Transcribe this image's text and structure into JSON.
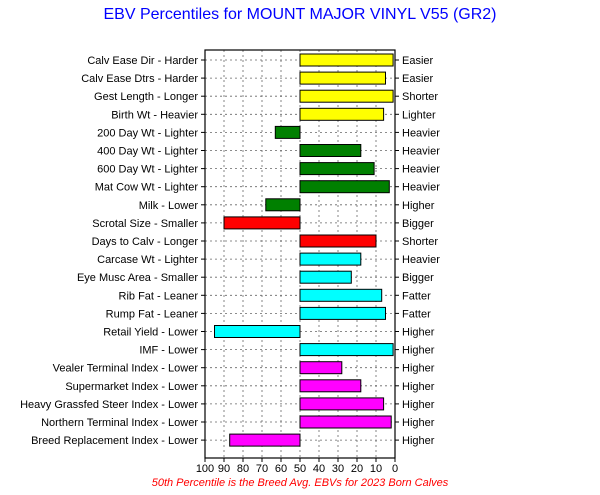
{
  "title": "EBV Percentiles for MOUNT MAJOR VINYL V55 (GR2)",
  "footnote": "50th Percentile is the Breed Avg. EBVs for 2023 Born Calves",
  "colors": {
    "title": "#0000ff",
    "footnote": "#ff0000",
    "yellow": "#ffff00",
    "green": "#008000",
    "red": "#ff0000",
    "cyan": "#00ffff",
    "magenta": "#ff00ff"
  },
  "chart_data": {
    "type": "bar",
    "orientation": "horizontal",
    "x_axis_reversed": true,
    "baseline": 50,
    "xlim": [
      100,
      0
    ],
    "x_ticks": [
      "100",
      "90",
      "80",
      "70",
      "60",
      "50",
      "40",
      "30",
      "20",
      "10",
      "0"
    ],
    "grid": true,
    "bars": [
      {
        "label": "Calv Ease Dir - Harder",
        "right_label": "Easier",
        "value": 1,
        "color": "yellow"
      },
      {
        "label": "Calv Ease Dtrs - Harder",
        "right_label": "Easier",
        "value": 5,
        "color": "yellow"
      },
      {
        "label": "Gest Length - Longer",
        "right_label": "Shorter",
        "value": 1,
        "color": "yellow"
      },
      {
        "label": "Birth Wt - Heavier",
        "right_label": "Lighter",
        "value": 6,
        "color": "yellow"
      },
      {
        "label": "200 Day Wt - Lighter",
        "right_label": "Heavier",
        "value": 63,
        "color": "green"
      },
      {
        "label": "400 Day Wt - Lighter",
        "right_label": "Heavier",
        "value": 18,
        "color": "green"
      },
      {
        "label": "600 Day Wt - Lighter",
        "right_label": "Heavier",
        "value": 11,
        "color": "green"
      },
      {
        "label": "Mat Cow Wt - Lighter",
        "right_label": "Heavier",
        "value": 3,
        "color": "green"
      },
      {
        "label": "Milk - Lower",
        "right_label": "Higher",
        "value": 68,
        "color": "green"
      },
      {
        "label": "Scrotal Size - Smaller",
        "right_label": "Bigger",
        "value": 90,
        "color": "red"
      },
      {
        "label": "Days to Calv - Longer",
        "right_label": "Shorter",
        "value": 10,
        "color": "red"
      },
      {
        "label": "Carcase Wt - Lighter",
        "right_label": "Heavier",
        "value": 18,
        "color": "cyan"
      },
      {
        "label": "Eye Musc Area - Smaller",
        "right_label": "Bigger",
        "value": 23,
        "color": "cyan"
      },
      {
        "label": "Rib Fat - Leaner",
        "right_label": "Fatter",
        "value": 7,
        "color": "cyan"
      },
      {
        "label": "Rump Fat - Leaner",
        "right_label": "Fatter",
        "value": 5,
        "color": "cyan"
      },
      {
        "label": "Retail Yield - Lower",
        "right_label": "Higher",
        "value": 95,
        "color": "cyan"
      },
      {
        "label": "IMF - Lower",
        "right_label": "Higher",
        "value": 1,
        "color": "cyan"
      },
      {
        "label": "Vealer Terminal Index - Lower",
        "right_label": "Higher",
        "value": 28,
        "color": "magenta"
      },
      {
        "label": "Supermarket Index - Lower",
        "right_label": "Higher",
        "value": 18,
        "color": "magenta"
      },
      {
        "label": "Heavy Grassfed Steer Index - Lower",
        "right_label": "Higher",
        "value": 6,
        "color": "magenta"
      },
      {
        "label": "Northern Terminal Index - Lower",
        "right_label": "Higher",
        "value": 2,
        "color": "magenta"
      },
      {
        "label": "Breed Replacement Index - Lower",
        "right_label": "Higher",
        "value": 87,
        "color": "magenta"
      }
    ]
  }
}
